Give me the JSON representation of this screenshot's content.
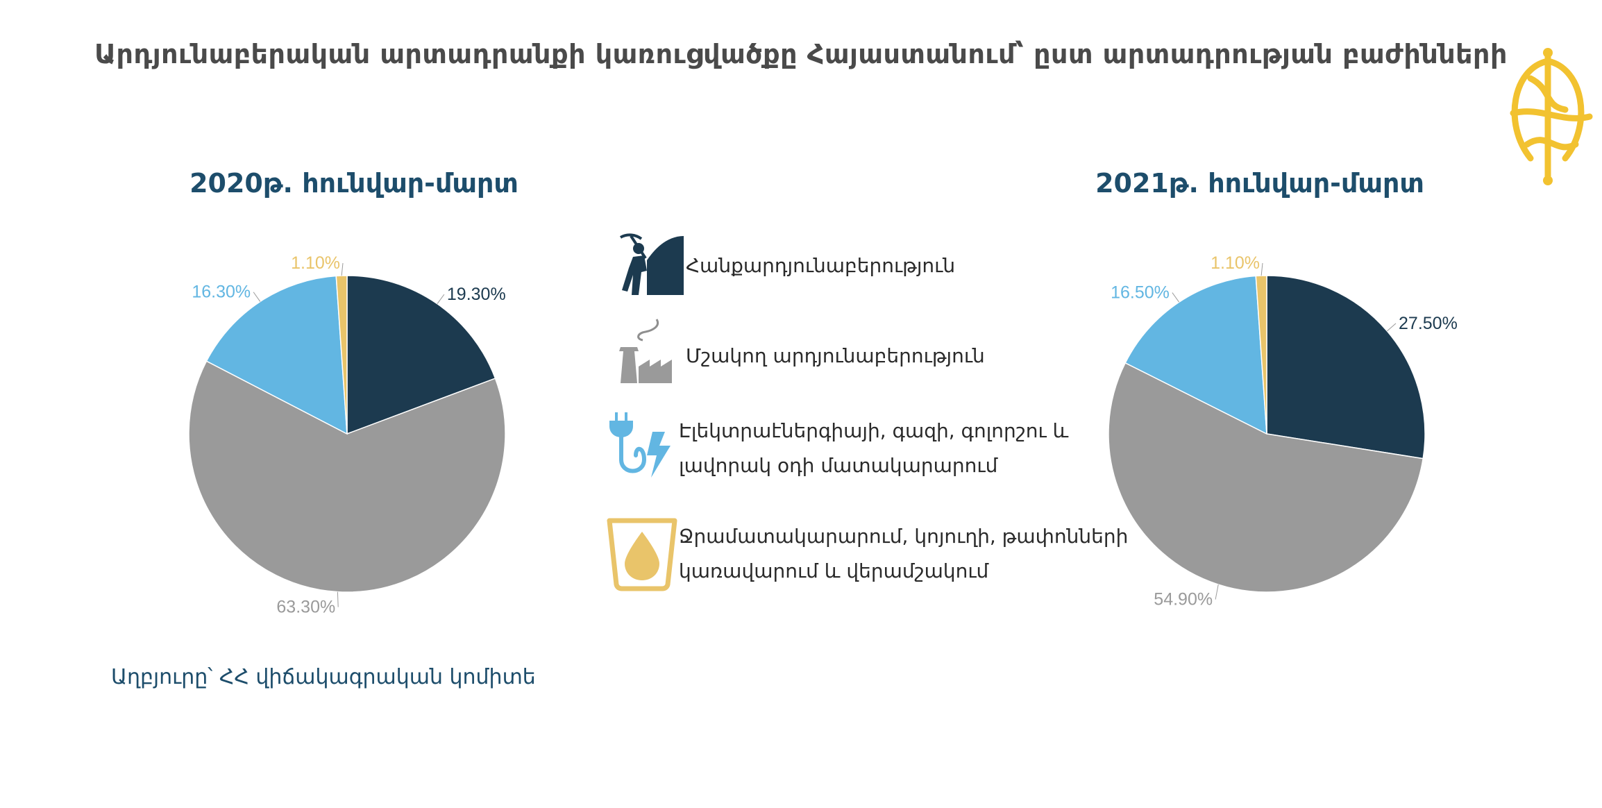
{
  "title": "Արդյունաբերական արտադրանքի կառուցվածքը Հայաստանում՝ ըստ արտադրության բաժինների",
  "source": "Աղբյուրը՝ ՀՀ վիճակագրական կոմիտե",
  "legend": [
    {
      "label": "Հանքարդյունաբերություն",
      "icon": "miner-icon",
      "color": "#1c3a4f"
    },
    {
      "label": "Մշակող արդյունաբերություն",
      "icon": "factory-icon",
      "color": "#9a9a9a"
    },
    {
      "label_line1": "Էլեկտրաէներգիայի, գազի, գոլորշու և",
      "label_line2": "լավորակ օդի մատակարարում",
      "icon": "plug-lightning-icon",
      "color": "#62b6e2"
    },
    {
      "label_line1": "Ջրամատակարարում, կոյուղի, թափոնների",
      "label_line2": "կառավարում և վերամշակում",
      "icon": "water-drop-icon",
      "color": "#e9c46a"
    }
  ],
  "chart_data": [
    {
      "type": "pie",
      "title": "2020թ. հունվար-մարտ",
      "categories": [
        "Հանքարդյունաբերություն",
        "Մշակող արդյունաբերություն",
        "Էլեկտրաէներգիայի, գազի, գոլորշու և լավորակ օդի մատակարարում",
        "Ջրամատակարարում, կոյուղի, թափոնների կառավարում և վերամշակում"
      ],
      "values": [
        19.3,
        63.3,
        16.3,
        1.1
      ],
      "labels": [
        "19.30%",
        "63.30%",
        "16.30%",
        "1.10%"
      ],
      "colors": [
        "#1c3a4f",
        "#9a9a9a",
        "#62b6e2",
        "#e9c46a"
      ],
      "label_colors": [
        "#1c3a4f",
        "#9a9a9a",
        "#62b6e2",
        "#e9c46a"
      ]
    },
    {
      "type": "pie",
      "title": "2021թ. հունվար-մարտ",
      "categories": [
        "Հանքարդյունաբերություն",
        "Մշակող արդյունաբերություն",
        "Էլեկտրաէներգիայի, գազի, գոլորշու և լավորակ օդի մատակարարում",
        "Ջրամատակարարում, կոյուղի, թափոնների կառավարում և վերամշակում"
      ],
      "values": [
        27.5,
        54.9,
        16.5,
        1.1
      ],
      "labels": [
        "27.50%",
        "54.90%",
        "16.50%",
        "1.10%"
      ],
      "colors": [
        "#1c3a4f",
        "#9a9a9a",
        "#62b6e2",
        "#e9c46a"
      ],
      "label_colors": [
        "#1c3a4f",
        "#9a9a9a",
        "#62b6e2",
        "#e9c46a"
      ]
    }
  ]
}
